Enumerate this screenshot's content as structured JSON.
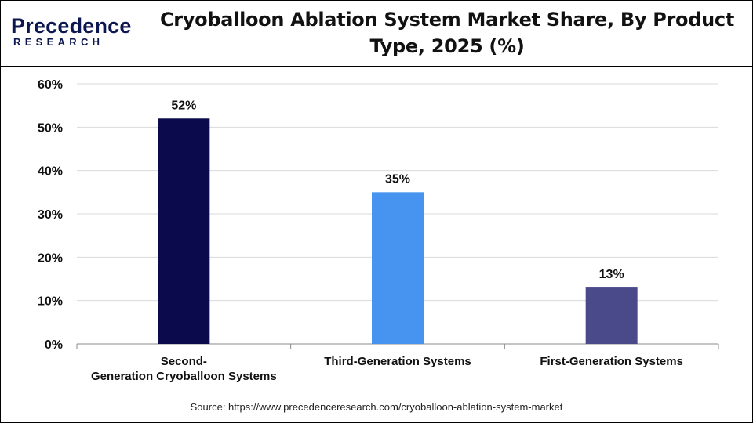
{
  "header": {
    "logo_main": "Precedence",
    "logo_sub": "RESEARCH",
    "title": "Cryoballoon Ablation System Market Share, By Product Type, 2025 (%)"
  },
  "source": "Source: https://www.precedenceresearch.com/cryoballoon-ablation-system-market",
  "chart_data": {
    "type": "bar",
    "categories": [
      [
        "Second-",
        "Generation Cryoballoon Systems"
      ],
      [
        "Third-Generation Systems"
      ],
      [
        "First-Generation Systems"
      ]
    ],
    "values": [
      52,
      35,
      13
    ],
    "value_labels": [
      "52%",
      "35%",
      "13%"
    ],
    "bar_colors": [
      "#0a0a4d",
      "#4694f0",
      "#4a4a8a"
    ],
    "ylim": [
      0,
      60
    ],
    "yticks": [
      0,
      10,
      20,
      30,
      40,
      50,
      60
    ],
    "ytick_labels": [
      "0%",
      "10%",
      "20%",
      "30%",
      "40%",
      "50%",
      "60%"
    ],
    "grid": true,
    "xlabel": "",
    "ylabel": ""
  }
}
